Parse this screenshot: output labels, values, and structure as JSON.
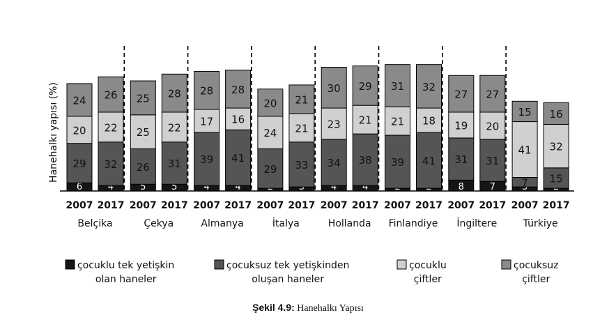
{
  "chart_data": {
    "type": "bar",
    "stacked": true,
    "ylabel": "Hanehalkı yapısı (%)",
    "countries": [
      "Belçika",
      "Çekya",
      "Almanya",
      "İtalya",
      "Hollanda",
      "Finlandiye",
      "İngiltere",
      "Türkiye"
    ],
    "years": [
      "2007",
      "2017"
    ],
    "categories": [
      "2007",
      "2017",
      "2007",
      "2017",
      "2007",
      "2017",
      "2007",
      "2017",
      "2007",
      "2017",
      "2007",
      "2017",
      "2007",
      "2017",
      "2007",
      "2017"
    ],
    "series": [
      {
        "name": "çocuklu tek yetişkin olan haneler",
        "name_lines": [
          "çocuklu tek yetişkin",
          "olan haneler"
        ],
        "color": "#151515",
        "values": [
          6,
          4,
          5,
          5,
          4,
          4,
          2,
          3,
          4,
          4,
          2,
          2,
          8,
          7,
          3,
          2
        ]
      },
      {
        "name": "çocuksuz tek yetişkinden oluşan haneler",
        "name_lines": [
          "çocuksuz tek yetişkinden",
          "oluşan haneler"
        ],
        "color": "#555555",
        "values": [
          29,
          32,
          26,
          31,
          39,
          41,
          29,
          33,
          34,
          38,
          39,
          41,
          31,
          31,
          7,
          15
        ]
      },
      {
        "name": "çocuklu çiftler",
        "name_lines": [
          "çocuklu",
          "çiftler"
        ],
        "color": "#d0d0d0",
        "values": [
          20,
          22,
          25,
          22,
          17,
          16,
          24,
          21,
          23,
          21,
          21,
          18,
          19,
          20,
          41,
          32
        ]
      },
      {
        "name": "çocuksuz çiftler",
        "name_lines": [
          "çocuksuz",
          "çiftler"
        ],
        "color": "#8a8a8a",
        "values": [
          24,
          26,
          25,
          28,
          28,
          28,
          20,
          21,
          30,
          29,
          31,
          32,
          27,
          27,
          15,
          16
        ]
      }
    ],
    "legend_position": "bottom",
    "grid": false
  },
  "caption": {
    "label": "Şekil 4.9:",
    "text": " Hanehalkı Yapısı"
  }
}
